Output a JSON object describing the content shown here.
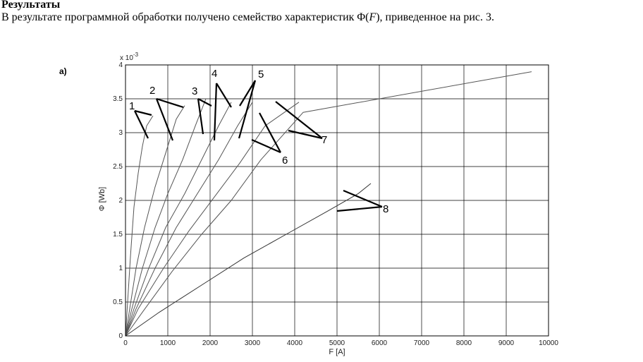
{
  "text": {
    "heading": "Результаты",
    "para_before": "В результате программной обработки получено семейство характеристик Φ(",
    "para_var": "F",
    "para_after": "), приведенное на рис. 3."
  },
  "chart_data": {
    "type": "line",
    "panel_label": "а)",
    "xlabel": "F [A]",
    "ylabel": "Φ [Wb]",
    "y_multiplier": "x 10",
    "y_multiplier_exp": "-3",
    "xlim": [
      0,
      10000
    ],
    "ylim": [
      0,
      4
    ],
    "x_ticks": [
      0,
      1000,
      2000,
      3000,
      4000,
      5000,
      6000,
      7000,
      8000,
      9000,
      10000
    ],
    "y_ticks": [
      "0",
      "0.5",
      "1",
      "1.5",
      "2",
      "2.5",
      "3",
      "3.5",
      "4"
    ],
    "grid": true,
    "curve_labels": [
      "1",
      "2",
      "3",
      "4",
      "5",
      "6",
      "7",
      "8"
    ],
    "series": [
      {
        "name": "1",
        "x": [
          0,
          50,
          120,
          200,
          300,
          400,
          500,
          650
        ],
        "y": [
          0,
          0.5,
          1.2,
          1.9,
          2.4,
          2.8,
          3.1,
          3.25
        ]
      },
      {
        "name": "2",
        "x": [
          0,
          100,
          250,
          450,
          700,
          950,
          1200,
          1400
        ],
        "y": [
          0,
          0.4,
          1.0,
          1.6,
          2.2,
          2.7,
          3.2,
          3.4
        ]
      },
      {
        "name": "3",
        "x": [
          0,
          150,
          400,
          700,
          1000,
          1350,
          1650,
          1900
        ],
        "y": [
          0,
          0.4,
          1.0,
          1.6,
          2.1,
          2.6,
          3.1,
          3.5
        ]
      },
      {
        "name": "4",
        "x": [
          0,
          200,
          550,
          950,
          1400,
          1800,
          2200,
          2500
        ],
        "y": [
          0,
          0.4,
          1.0,
          1.6,
          2.1,
          2.6,
          3.1,
          3.45
        ]
      },
      {
        "name": "5",
        "x": [
          0,
          250,
          700,
          1200,
          1700,
          2200,
          2650,
          3000
        ],
        "y": [
          0,
          0.4,
          1.0,
          1.6,
          2.1,
          2.6,
          3.1,
          3.45
        ]
      },
      {
        "name": "6",
        "x": [
          0,
          300,
          900,
          1500,
          2100,
          2700,
          3300,
          4100
        ],
        "y": [
          0,
          0.4,
          1.0,
          1.55,
          2.05,
          2.55,
          3.1,
          3.45
        ]
      },
      {
        "name": "7",
        "x": [
          0,
          400,
          1100,
          1800,
          2500,
          3200,
          4200,
          9600
        ],
        "y": [
          0,
          0.35,
          0.95,
          1.5,
          2.0,
          2.6,
          3.3,
          3.9
        ]
      },
      {
        "name": "8",
        "x": [
          0,
          800,
          1800,
          2800,
          3800,
          4800,
          5500,
          5800
        ],
        "y": [
          0,
          0.35,
          0.75,
          1.15,
          1.5,
          1.85,
          2.1,
          2.25
        ]
      }
    ]
  }
}
